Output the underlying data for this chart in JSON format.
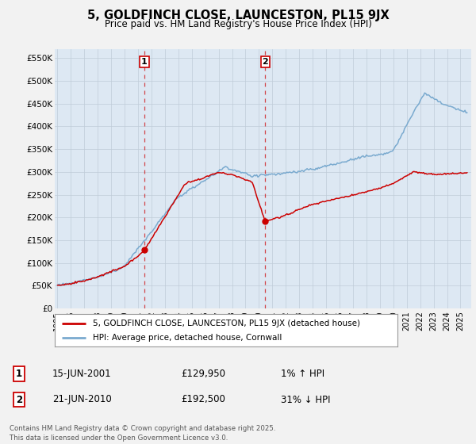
{
  "title": "5, GOLDFINCH CLOSE, LAUNCESTON, PL15 9JX",
  "subtitle": "Price paid vs. HM Land Registry's House Price Index (HPI)",
  "ylabel_ticks": [
    "£0",
    "£50K",
    "£100K",
    "£150K",
    "£200K",
    "£250K",
    "£300K",
    "£350K",
    "£400K",
    "£450K",
    "£500K",
    "£550K"
  ],
  "ytick_values": [
    0,
    50000,
    100000,
    150000,
    200000,
    250000,
    300000,
    350000,
    400000,
    450000,
    500000,
    550000
  ],
  "ylim": [
    0,
    570000
  ],
  "legend_label_red": "5, GOLDFINCH CLOSE, LAUNCESTON, PL15 9JX (detached house)",
  "legend_label_blue": "HPI: Average price, detached house, Cornwall",
  "annotation1_date": "15-JUN-2001",
  "annotation1_price": "£129,950",
  "annotation1_pct": "1% ↑ HPI",
  "annotation2_date": "21-JUN-2010",
  "annotation2_price": "£192,500",
  "annotation2_pct": "31% ↓ HPI",
  "footnote": "Contains HM Land Registry data © Crown copyright and database right 2025.\nThis data is licensed under the Open Government Licence v3.0.",
  "red_color": "#cc0000",
  "blue_color": "#7aaacf",
  "background_color": "#dde8f3",
  "grid_color": "#c0ccd8",
  "sale1_x": 2001.46,
  "sale1_y": 129950,
  "sale2_x": 2010.47,
  "sale2_y": 192500,
  "xmin": 1994.8,
  "xmax": 2025.8,
  "fig_bg": "#f2f2f2"
}
